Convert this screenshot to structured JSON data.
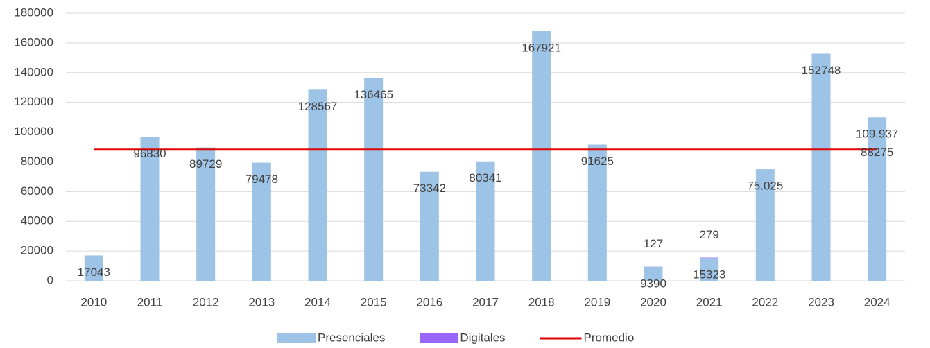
{
  "chart_data": {
    "type": "bar",
    "categories": [
      "2010",
      "2011",
      "2012",
      "2013",
      "2014",
      "2015",
      "2016",
      "2017",
      "2018",
      "2019",
      "2020",
      "2021",
      "2022",
      "2023",
      "2024"
    ],
    "series": [
      {
        "name": "Presenciales",
        "color": "#9dc3e6",
        "values": [
          17043,
          96830,
          89729,
          79478,
          128567,
          136465,
          73342,
          80341,
          167921,
          91625,
          9390,
          15323,
          75025,
          152748,
          109937
        ],
        "value_labels": [
          "17043",
          "96830",
          "89729",
          "79478",
          "128567",
          "136465",
          "73342",
          "80341",
          "167921",
          "91625",
          "9390",
          "15323",
          "75.025",
          "152748",
          "109.937"
        ]
      },
      {
        "name": "Digitales",
        "color": "#9966ff",
        "values": [
          null,
          null,
          null,
          null,
          null,
          null,
          null,
          null,
          null,
          null,
          127,
          279,
          null,
          null,
          null
        ]
      },
      {
        "name": "Promedio",
        "color": "#e00000",
        "kind": "line",
        "values": [
          88275,
          88275,
          88275,
          88275,
          88275,
          88275,
          88275,
          88275,
          88275,
          88275,
          88275,
          88275,
          88275,
          88275,
          88275
        ]
      }
    ],
    "ylim": [
      0,
      180000
    ],
    "yticks": [
      0,
      20000,
      40000,
      60000,
      80000,
      100000,
      120000,
      140000,
      160000,
      180000
    ],
    "grid": true,
    "legend": "bottom"
  }
}
